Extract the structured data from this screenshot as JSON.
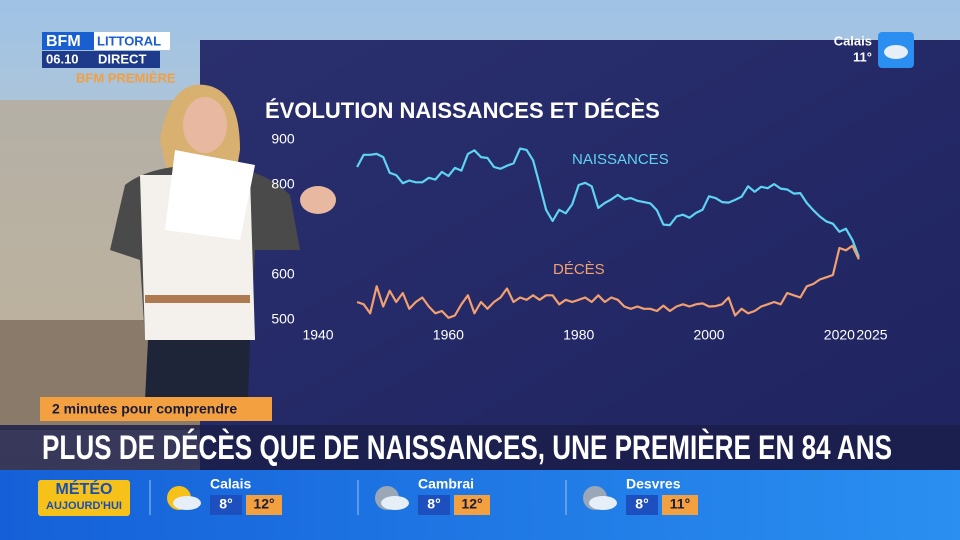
{
  "header": {
    "channel": "BFM",
    "region": "LITTORAL",
    "time": "06.10",
    "live": "DIRECT",
    "program": "BFM PREMIÈRE"
  },
  "weather_corner": {
    "city": "Calais",
    "temp": "11°"
  },
  "chart_data": {
    "type": "line",
    "title": "ÉVOLUTION NAISSANCES ET DÉCÈS",
    "x": [
      1946,
      1947,
      1948,
      1949,
      1950,
      1951,
      1952,
      1953,
      1954,
      1955,
      1956,
      1957,
      1958,
      1959,
      1960,
      1961,
      1962,
      1963,
      1964,
      1965,
      1966,
      1967,
      1968,
      1969,
      1970,
      1971,
      1972,
      1973,
      1974,
      1975,
      1976,
      1977,
      1978,
      1979,
      1980,
      1981,
      1982,
      1983,
      1984,
      1985,
      1986,
      1987,
      1988,
      1989,
      1990,
      1991,
      1992,
      1993,
      1994,
      1995,
      1996,
      1997,
      1998,
      1999,
      2000,
      2001,
      2002,
      2003,
      2004,
      2005,
      2006,
      2007,
      2008,
      2009,
      2010,
      2011,
      2012,
      2013,
      2014,
      2015,
      2016,
      2017,
      2018,
      2019,
      2020,
      2021,
      2022,
      2023
    ],
    "series": [
      {
        "name": "NAISSANCES",
        "color": "#5fd3f3",
        "values": [
          840,
          867,
          867,
          869,
          862,
          827,
          822,
          804,
          810,
          806,
          806,
          816,
          812,
          829,
          820,
          838,
          832,
          869,
          877,
          862,
          860,
          840,
          836,
          843,
          848,
          881,
          878,
          855,
          801,
          745,
          720,
          745,
          737,
          757,
          800,
          805,
          797,
          749,
          760,
          768,
          778,
          768,
          771,
          765,
          762,
          759,
          744,
          712,
          711,
          730,
          734,
          727,
          738,
          745,
          775,
          771,
          762,
          761,
          767,
          774,
          797,
          785,
          796,
          793,
          802,
          792,
          790,
          781,
          782,
          760,
          744,
          730,
          719,
          714,
          696,
          703,
          678,
          640
        ]
      },
      {
        "name": "DÉCÈS",
        "color": "#f2a070",
        "values": [
          540,
          535,
          515,
          575,
          530,
          565,
          540,
          560,
          525,
          540,
          550,
          530,
          515,
          520,
          505,
          510,
          535,
          555,
          515,
          540,
          525,
          540,
          550,
          570,
          540,
          550,
          545,
          555,
          545,
          555,
          555,
          535,
          545,
          540,
          545,
          550,
          540,
          555,
          540,
          550,
          545,
          530,
          525,
          530,
          525,
          525,
          520,
          532,
          520,
          530,
          535,
          530,
          535,
          537,
          530,
          531,
          535,
          550,
          510,
          525,
          515,
          520,
          530,
          535,
          540,
          535,
          560,
          555,
          550,
          575,
          580,
          590,
          595,
          600,
          660,
          655,
          665,
          635
        ]
      }
    ],
    "xlim": [
      1938,
      2027
    ],
    "xticks": [
      1940,
      1960,
      1980,
      2000,
      2020,
      2025
    ],
    "ylim": [
      500,
      900
    ],
    "yticks": [
      500,
      600,
      800,
      900
    ]
  },
  "banner": {
    "tag": "2 minutes pour comprendre",
    "headline": "PLUS DE DÉCÈS QUE DE NAISSANCES, UNE PREMIÈRE EN 84 ANS"
  },
  "weather_bar": {
    "title": "MÉTÉO",
    "subtitle": "AUJOURD'HUI",
    "cities": [
      {
        "name": "Calais",
        "min": "8°",
        "max": "12°"
      },
      {
        "name": "Cambrai",
        "min": "8°",
        "max": "12°"
      },
      {
        "name": "Desvres",
        "min": "8°",
        "max": "11°"
      }
    ]
  }
}
